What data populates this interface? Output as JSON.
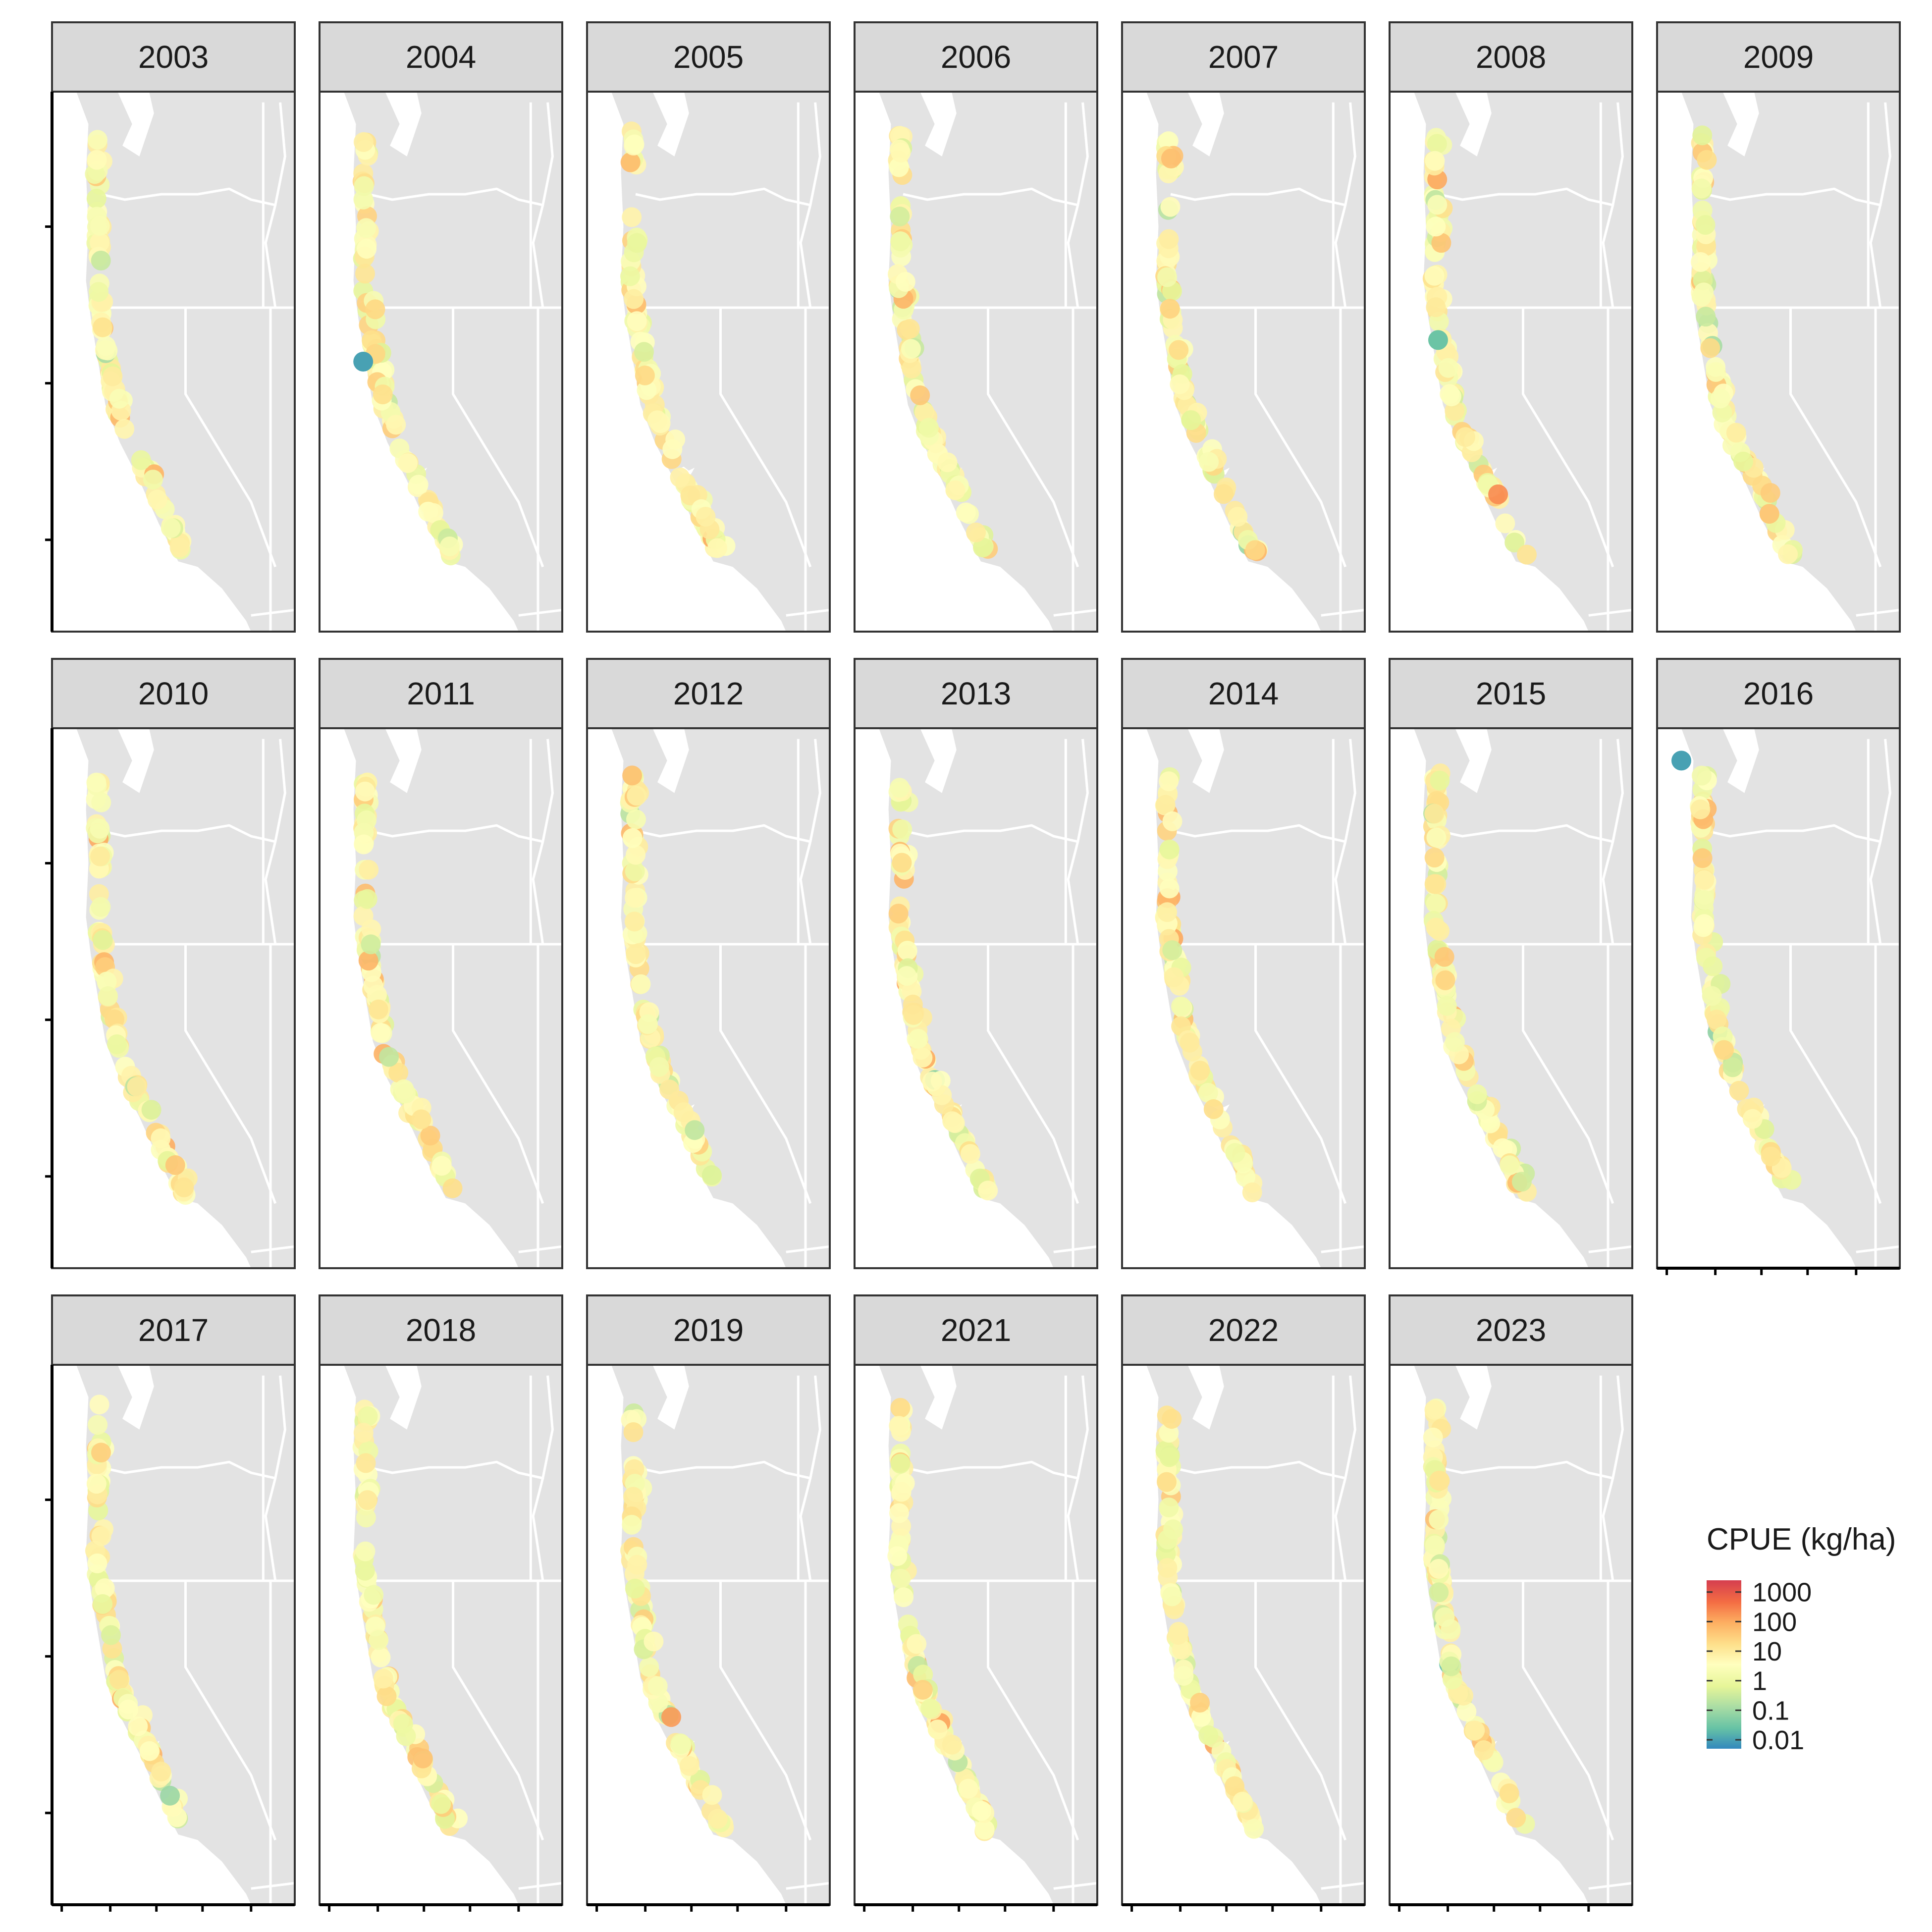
{
  "chart_data": {
    "type": "scatter",
    "facet_variable": "year",
    "panels": [
      "2003",
      "2004",
      "2005",
      "2006",
      "2007",
      "2008",
      "2009",
      "2010",
      "2011",
      "2012",
      "2013",
      "2014",
      "2015",
      "2016",
      "2017",
      "2018",
      "2019",
      "2021",
      "2022",
      "2023"
    ],
    "color_scale": {
      "title": "CPUE (kg/ha)",
      "scale": "log10",
      "breaks": [
        1000,
        100,
        10,
        1,
        0.1,
        0.01
      ],
      "labels": [
        "1000",
        "100",
        "10",
        "1",
        "0.1",
        "0.01"
      ],
      "range": [
        0.005,
        2500
      ],
      "colors": [
        "#3288bd",
        "#66c2a5",
        "#abdda4",
        "#e6f598",
        "#ffffbf",
        "#fee08b",
        "#fdae61",
        "#f46d43",
        "#d53e4f"
      ]
    },
    "map": {
      "land_color": "#e3e3e3",
      "border_color": "#ffffff"
    },
    "x_axis_ticks_shown_on": [
      "2016",
      "2017",
      "2018",
      "2019",
      "2021",
      "2022",
      "2023"
    ],
    "y_axis_ticks_shown_on": [
      "2003",
      "2010",
      "2017"
    ],
    "grid": false,
    "legend_position": "right"
  }
}
